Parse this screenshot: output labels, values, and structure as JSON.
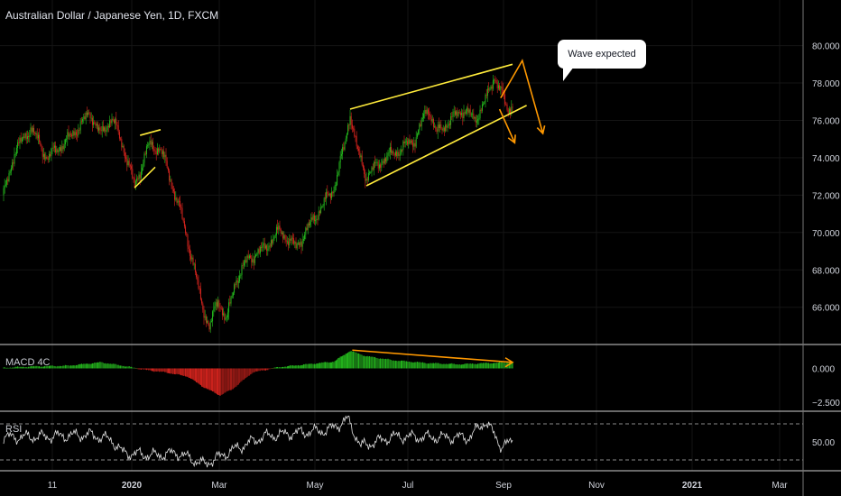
{
  "title": "Australian Dollar / Japanese Yen, 1D, FXCM",
  "panes": {
    "macd_label": "MACD 4C",
    "rsi_label": "RSI"
  },
  "annotation": "Wave expected",
  "colors": {
    "up": "#26c21e",
    "down": "#e0261f",
    "trendline": "#ffeb3b",
    "projection": "#ff9800",
    "rsi": "#e0e0e0",
    "divider": "#cfcfcf"
  },
  "chart_data": {
    "type": "candlestick",
    "title": "Australian Dollar / Japanese Yen, 1D, FXCM",
    "x_ticks": [
      "11",
      "2020",
      "Mar",
      "May",
      "Jul",
      "Sep",
      "Nov",
      "2021",
      "Mar"
    ],
    "price": {
      "ylim": [
        64.2,
        80.8
      ],
      "y_ticks": [
        66,
        68,
        70,
        72,
        74,
        76,
        78,
        80
      ],
      "y_tick_labels": [
        "66.000",
        "68.000",
        "70.000",
        "72.000",
        "74.000",
        "76.000",
        "78.000",
        "80.000"
      ],
      "anchors": [
        [
          0,
          72.0
        ],
        [
          10,
          74.3
        ],
        [
          25,
          75.6
        ],
        [
          40,
          74.0
        ],
        [
          60,
          75.0
        ],
        [
          80,
          76.4
        ],
        [
          90,
          75.2
        ],
        [
          100,
          76.2
        ],
        [
          110,
          74.6
        ],
        [
          115,
          73.8
        ],
        [
          121,
          72.4
        ],
        [
          133,
          74.6
        ],
        [
          145,
          74.5
        ],
        [
          152,
          73.2
        ],
        [
          163,
          71.2
        ],
        [
          174,
          68.6
        ],
        [
          182,
          66.4
        ],
        [
          190,
          64.9
        ],
        [
          198,
          66.4
        ],
        [
          206,
          65.3
        ],
        [
          214,
          67.4
        ],
        [
          226,
          68.6
        ],
        [
          240,
          69.1
        ],
        [
          255,
          70.1
        ],
        [
          270,
          69.2
        ],
        [
          285,
          70.6
        ],
        [
          305,
          72.4
        ],
        [
          315,
          74.7
        ],
        [
          320,
          76.4
        ],
        [
          326,
          74.5
        ],
        [
          335,
          73.0
        ],
        [
          350,
          73.9
        ],
        [
          365,
          74.4
        ],
        [
          380,
          75.0
        ],
        [
          392,
          76.7
        ],
        [
          400,
          75.3
        ],
        [
          412,
          76.0
        ],
        [
          425,
          76.6
        ],
        [
          435,
          76.0
        ],
        [
          447,
          77.3
        ],
        [
          453,
          78.4
        ],
        [
          460,
          77.4
        ],
        [
          466,
          76.5
        ],
        [
          470,
          77.0
        ]
      ]
    },
    "macd": {
      "ylim": [
        -2.9,
        1.5
      ],
      "y_ticks": [
        0,
        -2.5
      ],
      "y_tick_labels": [
        "0.000",
        "−2.500"
      ],
      "anchors": [
        [
          0,
          0.05
        ],
        [
          30,
          0.15
        ],
        [
          60,
          0.2
        ],
        [
          90,
          0.45
        ],
        [
          110,
          0.2
        ],
        [
          130,
          -0.1
        ],
        [
          150,
          -0.3
        ],
        [
          170,
          -0.6
        ],
        [
          185,
          -1.4
        ],
        [
          200,
          -2.0
        ],
        [
          212,
          -1.5
        ],
        [
          230,
          -0.3
        ],
        [
          255,
          0.1
        ],
        [
          280,
          0.3
        ],
        [
          305,
          0.5
        ],
        [
          320,
          1.3
        ],
        [
          335,
          0.9
        ],
        [
          360,
          0.6
        ],
        [
          390,
          0.4
        ],
        [
          420,
          0.3
        ],
        [
          450,
          0.4
        ],
        [
          470,
          0.45
        ]
      ]
    },
    "rsi": {
      "ylim": [
        22,
        78
      ],
      "levels": [
        70,
        30
      ],
      "y_ticks": [
        50
      ],
      "y_tick_labels": [
        "50.00"
      ],
      "anchors": [
        [
          0,
          55
        ],
        [
          40,
          56
        ],
        [
          80,
          58
        ],
        [
          100,
          52
        ],
        [
          110,
          38
        ],
        [
          140,
          35
        ],
        [
          160,
          38
        ],
        [
          185,
          25
        ],
        [
          210,
          40
        ],
        [
          240,
          56
        ],
        [
          270,
          60
        ],
        [
          300,
          63
        ],
        [
          318,
          75
        ],
        [
          330,
          45
        ],
        [
          360,
          56
        ],
        [
          400,
          55
        ],
        [
          430,
          55
        ],
        [
          445,
          73
        ],
        [
          460,
          45
        ],
        [
          470,
          50
        ]
      ]
    },
    "trendlines": [
      {
        "pane": "price",
        "color": "yellow",
        "points": [
          [
            121,
            72.4
          ],
          [
            140,
            73.5
          ]
        ]
      },
      {
        "pane": "price",
        "color": "yellow",
        "points": [
          [
            126,
            75.2
          ],
          [
            145,
            75.5
          ]
        ]
      },
      {
        "pane": "price",
        "color": "yellow",
        "points": [
          [
            320,
            76.6
          ],
          [
            470,
            79.0
          ]
        ]
      },
      {
        "pane": "price",
        "color": "yellow",
        "points": [
          [
            335,
            72.5
          ],
          [
            483,
            76.8
          ]
        ]
      },
      {
        "pane": "macd",
        "color": "orange",
        "points": [
          [
            322,
            1.35
          ],
          [
            470,
            0.45
          ]
        ]
      }
    ],
    "projections": [
      {
        "color": "orange",
        "points": [
          [
            459,
            77.2
          ],
          [
            479,
            79.2
          ],
          [
            498,
            75.3
          ]
        ]
      },
      {
        "color": "orange",
        "points": [
          [
            458,
            76.6
          ],
          [
            472,
            74.8
          ]
        ]
      }
    ]
  }
}
